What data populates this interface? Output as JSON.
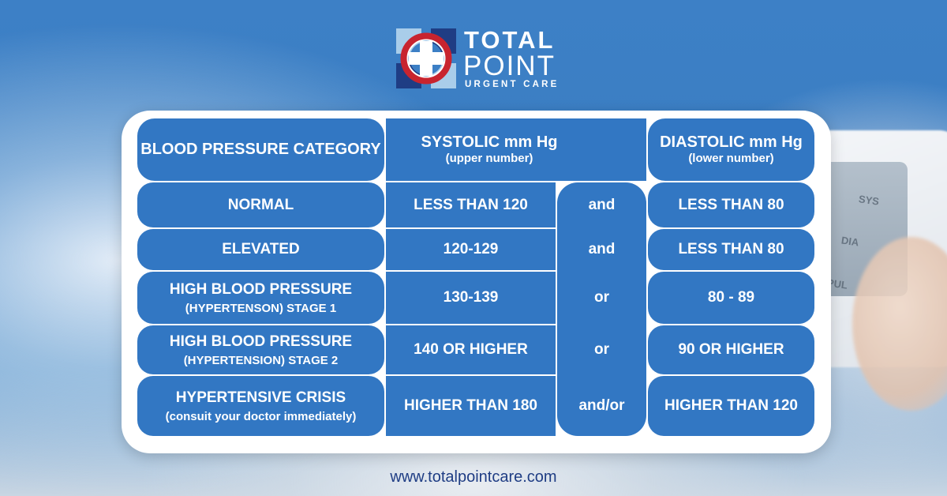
{
  "logo": {
    "line1": "TOTAL",
    "line2": "POINT",
    "line3": "URGENT CARE",
    "icon": "medical-cross-logo-icon",
    "colors": {
      "red": "#c8242f",
      "navy": "#1f3d84",
      "light_blue": "#a9cdea"
    }
  },
  "table": {
    "header": {
      "category": "BLOOD PRESSURE CATEGORY",
      "systolic": "SYSTOLIC mm Hg",
      "systolic_sub": "(upper number)",
      "diastolic": "DIASTOLIC mm Hg",
      "diastolic_sub": "(lower number)"
    },
    "rows": [
      {
        "category": "NORMAL",
        "category_sub": "",
        "systolic": "LESS THAN 120",
        "connector": "and",
        "diastolic": "LESS THAN 80"
      },
      {
        "category": "ELEVATED",
        "category_sub": "",
        "systolic": "120-129",
        "connector": "and",
        "diastolic": "LESS THAN 80"
      },
      {
        "category": "HIGH BLOOD PRESSURE",
        "category_sub": "(HYPERTENSON) STAGE 1",
        "systolic": "130-139",
        "connector": "or",
        "diastolic": "80 - 89"
      },
      {
        "category": "HIGH BLOOD PRESSURE",
        "category_sub": "(HYPERTENSION) STAGE 2",
        "systolic": "140 OR HIGHER",
        "connector": "or",
        "diastolic": "90 OR HIGHER"
      },
      {
        "category": "HYPERTENSIVE CRISIS",
        "category_sub": "(consuit your doctor immediately)",
        "systolic": "HIGHER THAN 180",
        "connector": "and/or",
        "diastolic": "HIGHER THAN 120"
      }
    ],
    "colors": {
      "cell_blue": "#3277c3",
      "frame": "#ffffff"
    }
  },
  "footer": {
    "website": "www.totalpointcare.com"
  }
}
